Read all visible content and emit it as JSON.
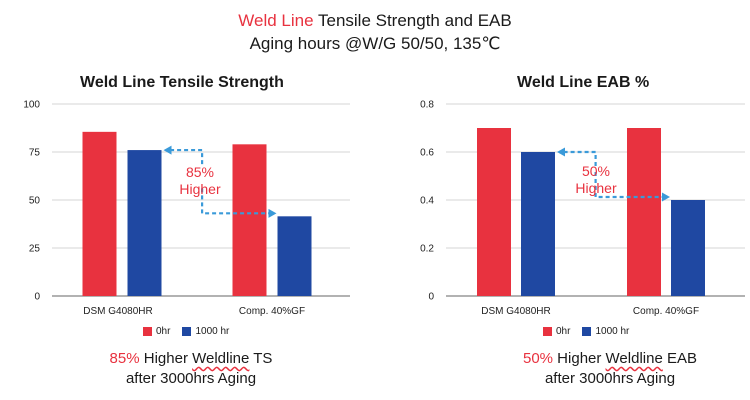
{
  "header": {
    "line1_red": "Weld Line",
    "line1_rest": "Tensile Strength and EAB",
    "line2": "Aging hours @W/G 50/50,  135℃"
  },
  "colors": {
    "series_0hr": "#e8323f",
    "series_1000hr": "#1f48a2",
    "accent_red": "#e8323f",
    "arrow": "#3a9ad9"
  },
  "chart_data": [
    {
      "type": "bar",
      "title": "Weld Line Tensile Strength",
      "categories": [
        "DSM G4080HR",
        "Comp. 40%GF"
      ],
      "series": [
        {
          "name": "0hr",
          "values": [
            85.5,
            79
          ]
        },
        {
          "name": "1000 hr",
          "values": [
            76,
            41.5
          ]
        }
      ],
      "ylim": [
        0,
        100
      ],
      "yticks": [
        "0",
        "25",
        "50",
        "75",
        "100"
      ],
      "grid": true,
      "legend_position": "bottom",
      "annotation": {
        "pct": "85%",
        "word": "Higher"
      },
      "caption": {
        "pct": "85%",
        "mid": " Higher ",
        "wavy": "Weldline",
        "end": " TS",
        "line2": "after 3000hrs Aging"
      }
    },
    {
      "type": "bar",
      "title": "Weld Line EAB %",
      "categories": [
        "DSM G4080HR",
        "Comp. 40%GF"
      ],
      "series": [
        {
          "name": "0hr",
          "values": [
            0.7,
            0.7
          ]
        },
        {
          "name": "1000 hr",
          "values": [
            0.6,
            0.4
          ]
        }
      ],
      "ylim": [
        0,
        0.8
      ],
      "yticks": [
        "0",
        "0.2",
        "0.4",
        "0.6",
        "0.8"
      ],
      "grid": true,
      "legend_position": "bottom",
      "annotation": {
        "pct": "50%",
        "word": "Higher"
      },
      "caption": {
        "pct": "50%",
        "mid": " Higher ",
        "wavy": "Weldline",
        "end": " EAB",
        "line2": "after 3000hrs Aging"
      }
    }
  ]
}
